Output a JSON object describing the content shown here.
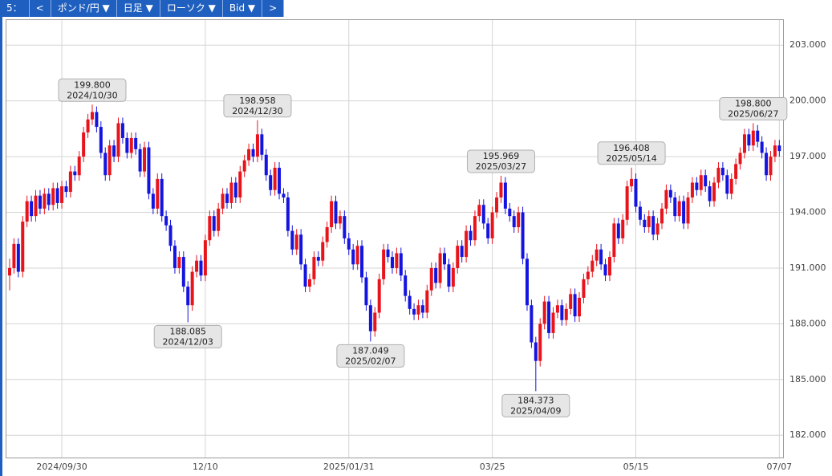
{
  "toolbar": [
    "5：",
    "<",
    "ポンド/円 ▼",
    "日足 ▼",
    "ローソク ▼",
    "Bid ▼",
    ">"
  ],
  "chart_data": {
    "type": "candlestick",
    "up_color": "#e8141c",
    "down_color": "#1414e0",
    "grid": true,
    "ylim": [
      180.8,
      204.35
    ],
    "yticks": [
      {
        "value": 182,
        "label": "182.000"
      },
      {
        "value": 185,
        "label": "185.000"
      },
      {
        "value": 188,
        "label": "188.000"
      },
      {
        "value": 191,
        "label": "191.000"
      },
      {
        "value": 194,
        "label": "194.000"
      },
      {
        "value": 197,
        "label": "197.000"
      },
      {
        "value": 200,
        "label": "200.000"
      },
      {
        "value": 203,
        "label": "203.000"
      }
    ],
    "xticks": [
      {
        "value": 12,
        "label": "2024/09/30"
      },
      {
        "value": 45,
        "label": "12/10"
      },
      {
        "value": 78,
        "label": "2025/01/31"
      },
      {
        "value": 111,
        "label": "03/25"
      },
      {
        "value": 144,
        "label": "05/15"
      },
      {
        "value": 177,
        "label": "07/07"
      }
    ],
    "annotations": [
      {
        "value": 199.8,
        "label": "199.800",
        "date": "2024/10/30"
      },
      {
        "value": 188.085,
        "label": "188.085",
        "date": "2024/12/03"
      },
      {
        "value": 198.958,
        "label": "198.958",
        "date": "2024/12/30"
      },
      {
        "value": 187.049,
        "label": "187.049",
        "date": "2025/02/07"
      },
      {
        "value": 195.969,
        "label": "195.969",
        "date": "2025/03/27"
      },
      {
        "value": 184.373,
        "label": "184.373",
        "date": "2025/04/09"
      },
      {
        "value": 196.408,
        "label": "196.408",
        "date": "2025/05/14"
      },
      {
        "value": 198.8,
        "label": "198.800",
        "date": "2025/06/27"
      }
    ],
    "candles": [
      [
        190.6,
        191.5,
        189.8,
        191.0
      ],
      [
        191.0,
        192.6,
        190.7,
        192.3
      ],
      [
        192.3,
        192.6,
        190.5,
        190.8
      ],
      [
        190.8,
        193.8,
        190.5,
        193.5
      ],
      [
        193.5,
        194.9,
        193.2,
        194.6
      ],
      [
        194.6,
        194.9,
        193.5,
        193.8
      ],
      [
        193.8,
        195.2,
        193.5,
        194.9
      ],
      [
        194.9,
        195.2,
        193.9,
        194.2
      ],
      [
        194.2,
        195.3,
        193.9,
        195.0
      ],
      [
        195.0,
        195.3,
        194.1,
        194.4
      ],
      [
        194.4,
        195.6,
        194.1,
        195.3
      ],
      [
        195.3,
        195.6,
        194.2,
        194.5
      ],
      [
        194.5,
        195.7,
        194.2,
        195.4
      ],
      [
        195.4,
        195.7,
        194.8,
        195.1
      ],
      [
        195.1,
        196.5,
        194.8,
        196.2
      ],
      [
        196.2,
        196.5,
        195.7,
        196.0
      ],
      [
        196.0,
        197.3,
        195.7,
        197.0
      ],
      [
        197.0,
        198.6,
        196.7,
        198.3
      ],
      [
        198.3,
        199.3,
        198.0,
        199.0
      ],
      [
        199.0,
        199.8,
        198.7,
        199.4
      ],
      [
        199.4,
        199.7,
        198.3,
        198.6
      ],
      [
        198.6,
        198.9,
        196.9,
        197.2
      ],
      [
        197.2,
        197.5,
        195.7,
        196.0
      ],
      [
        196.0,
        197.9,
        195.7,
        197.6
      ],
      [
        197.6,
        197.9,
        196.7,
        197.0
      ],
      [
        197.0,
        199.1,
        196.7,
        198.8
      ],
      [
        198.8,
        199.1,
        197.7,
        198.0
      ],
      [
        198.0,
        198.3,
        196.9,
        197.2
      ],
      [
        197.2,
        198.3,
        196.9,
        198.0
      ],
      [
        198.0,
        198.3,
        197.1,
        197.4
      ],
      [
        197.4,
        197.7,
        195.9,
        196.2
      ],
      [
        196.2,
        197.8,
        195.9,
        197.5
      ],
      [
        197.5,
        197.8,
        194.7,
        195.0
      ],
      [
        195.0,
        195.3,
        193.9,
        194.2
      ],
      [
        194.2,
        196.1,
        193.9,
        195.8
      ],
      [
        195.8,
        196.1,
        193.5,
        193.8
      ],
      [
        193.8,
        194.1,
        193.0,
        193.3
      ],
      [
        193.3,
        193.6,
        191.9,
        192.2
      ],
      [
        192.2,
        192.5,
        190.7,
        191.0
      ],
      [
        191.0,
        191.9,
        190.7,
        191.6
      ],
      [
        191.6,
        191.9,
        189.7,
        190.0
      ],
      [
        190.0,
        190.3,
        188.085,
        189.0
      ],
      [
        189.0,
        191.1,
        188.7,
        190.8
      ],
      [
        190.8,
        191.7,
        190.5,
        191.4
      ],
      [
        191.4,
        191.7,
        190.3,
        190.6
      ],
      [
        190.6,
        192.8,
        190.3,
        192.5
      ],
      [
        192.5,
        194.1,
        192.2,
        193.8
      ],
      [
        193.8,
        194.1,
        192.7,
        193.0
      ],
      [
        193.0,
        194.5,
        192.7,
        194.2
      ],
      [
        194.2,
        195.3,
        193.9,
        195.0
      ],
      [
        195.0,
        195.3,
        194.2,
        194.5
      ],
      [
        194.5,
        195.9,
        194.2,
        195.6
      ],
      [
        195.6,
        195.9,
        194.5,
        194.8
      ],
      [
        194.8,
        196.5,
        194.5,
        196.2
      ],
      [
        196.2,
        197.1,
        195.9,
        196.8
      ],
      [
        196.8,
        197.7,
        196.5,
        197.4
      ],
      [
        197.4,
        197.7,
        196.7,
        197.0
      ],
      [
        197.0,
        198.958,
        196.7,
        198.2
      ],
      [
        198.2,
        198.5,
        196.8,
        197.1
      ],
      [
        197.1,
        197.4,
        195.7,
        196.0
      ],
      [
        196.0,
        196.3,
        194.9,
        195.2
      ],
      [
        195.2,
        196.7,
        194.9,
        196.4
      ],
      [
        196.4,
        196.7,
        194.7,
        195.0
      ],
      [
        195.0,
        195.3,
        194.5,
        194.8
      ],
      [
        194.8,
        195.1,
        192.7,
        193.0
      ],
      [
        193.0,
        193.3,
        191.7,
        192.0
      ],
      [
        192.0,
        193.1,
        191.7,
        192.8
      ],
      [
        192.8,
        193.1,
        190.9,
        191.2
      ],
      [
        191.2,
        191.5,
        189.7,
        190.0
      ],
      [
        190.0,
        190.7,
        189.7,
        190.4
      ],
      [
        190.4,
        191.9,
        190.1,
        191.6
      ],
      [
        191.6,
        191.9,
        191.1,
        191.4
      ],
      [
        191.4,
        192.7,
        191.1,
        192.4
      ],
      [
        192.4,
        193.5,
        192.1,
        193.2
      ],
      [
        193.2,
        194.9,
        192.9,
        194.6
      ],
      [
        194.6,
        194.9,
        193.1,
        193.4
      ],
      [
        193.4,
        194.1,
        193.1,
        193.8
      ],
      [
        193.8,
        194.1,
        192.3,
        192.6
      ],
      [
        192.6,
        192.9,
        191.7,
        192.0
      ],
      [
        192.0,
        192.3,
        190.9,
        191.2
      ],
      [
        191.2,
        192.5,
        190.9,
        192.2
      ],
      [
        192.2,
        192.5,
        190.2,
        190.5
      ],
      [
        190.5,
        190.8,
        188.7,
        189.0
      ],
      [
        189.0,
        189.3,
        187.049,
        187.6
      ],
      [
        187.6,
        188.9,
        187.3,
        188.6
      ],
      [
        188.6,
        190.7,
        188.3,
        190.4
      ],
      [
        190.4,
        192.3,
        190.1,
        192.0
      ],
      [
        192.0,
        192.3,
        191.3,
        191.6
      ],
      [
        191.6,
        191.9,
        190.7,
        191.0
      ],
      [
        191.0,
        192.1,
        190.7,
        191.8
      ],
      [
        191.8,
        192.1,
        190.3,
        190.6
      ],
      [
        190.6,
        190.9,
        189.2,
        189.5
      ],
      [
        189.5,
        189.8,
        188.5,
        188.8
      ],
      [
        188.8,
        189.1,
        188.2,
        188.5
      ],
      [
        188.5,
        189.3,
        188.2,
        189.0
      ],
      [
        189.0,
        189.3,
        188.3,
        188.6
      ],
      [
        188.6,
        190.1,
        188.3,
        189.8
      ],
      [
        189.8,
        191.3,
        189.5,
        191.0
      ],
      [
        191.0,
        191.3,
        189.9,
        190.2
      ],
      [
        190.2,
        192.1,
        189.9,
        191.8
      ],
      [
        191.8,
        192.1,
        190.9,
        191.2
      ],
      [
        191.2,
        191.5,
        189.7,
        190.0
      ],
      [
        190.0,
        191.3,
        189.7,
        191.0
      ],
      [
        191.0,
        192.5,
        190.7,
        192.2
      ],
      [
        192.2,
        192.5,
        191.3,
        191.6
      ],
      [
        191.6,
        193.3,
        191.3,
        193.0
      ],
      [
        193.0,
        193.3,
        192.2,
        192.5
      ],
      [
        192.5,
        194.1,
        192.2,
        193.8
      ],
      [
        193.8,
        194.7,
        193.5,
        194.4
      ],
      [
        194.4,
        194.7,
        193.1,
        193.4
      ],
      [
        193.4,
        193.7,
        192.3,
        192.6
      ],
      [
        192.6,
        194.3,
        192.3,
        194.0
      ],
      [
        194.0,
        195.1,
        193.7,
        194.8
      ],
      [
        194.8,
        195.969,
        194.5,
        195.6
      ],
      [
        195.6,
        195.9,
        193.9,
        194.2
      ],
      [
        194.2,
        194.5,
        193.5,
        193.8
      ],
      [
        193.8,
        194.1,
        192.9,
        193.2
      ],
      [
        193.2,
        194.3,
        192.9,
        194.0
      ],
      [
        194.0,
        194.3,
        191.2,
        191.5
      ],
      [
        191.5,
        191.8,
        188.7,
        189.0
      ],
      [
        189.0,
        189.3,
        186.7,
        187.0
      ],
      [
        187.0,
        187.3,
        184.373,
        186.0
      ],
      [
        186.0,
        188.3,
        185.7,
        188.0
      ],
      [
        188.0,
        189.5,
        187.7,
        189.2
      ],
      [
        189.2,
        189.5,
        187.2,
        187.5
      ],
      [
        187.5,
        188.9,
        187.2,
        188.6
      ],
      [
        188.6,
        189.3,
        188.3,
        189.0
      ],
      [
        189.0,
        189.3,
        187.9,
        188.2
      ],
      [
        188.2,
        189.1,
        187.9,
        188.8
      ],
      [
        188.8,
        189.9,
        188.5,
        189.6
      ],
      [
        189.6,
        189.9,
        188.1,
        188.4
      ],
      [
        188.4,
        189.7,
        188.1,
        189.4
      ],
      [
        189.4,
        190.7,
        189.1,
        190.4
      ],
      [
        190.4,
        191.1,
        190.1,
        190.8
      ],
      [
        190.8,
        191.7,
        190.5,
        191.4
      ],
      [
        191.4,
        192.3,
        191.1,
        192.0
      ],
      [
        192.0,
        192.3,
        190.9,
        191.2
      ],
      [
        191.2,
        191.5,
        190.3,
        190.6
      ],
      [
        190.6,
        191.9,
        190.3,
        191.6
      ],
      [
        191.6,
        193.7,
        191.3,
        193.4
      ],
      [
        193.4,
        193.7,
        192.3,
        192.6
      ],
      [
        192.6,
        193.9,
        192.3,
        193.6
      ],
      [
        193.6,
        195.7,
        193.3,
        195.4
      ],
      [
        195.4,
        196.408,
        195.1,
        195.8
      ],
      [
        195.8,
        196.1,
        194.0,
        194.3
      ],
      [
        194.3,
        194.6,
        193.3,
        193.6
      ],
      [
        193.6,
        193.9,
        192.9,
        193.2
      ],
      [
        193.2,
        194.1,
        192.9,
        193.8
      ],
      [
        193.8,
        194.1,
        192.5,
        192.8
      ],
      [
        192.8,
        193.7,
        192.5,
        193.4
      ],
      [
        193.4,
        194.5,
        193.1,
        194.2
      ],
      [
        194.2,
        195.5,
        193.9,
        195.2
      ],
      [
        195.2,
        195.5,
        194.5,
        194.8
      ],
      [
        194.8,
        195.1,
        193.5,
        193.8
      ],
      [
        193.8,
        194.9,
        193.5,
        194.6
      ],
      [
        194.6,
        194.9,
        193.1,
        193.4
      ],
      [
        193.4,
        195.1,
        193.1,
        194.8
      ],
      [
        194.8,
        195.9,
        194.5,
        195.6
      ],
      [
        195.6,
        195.9,
        194.9,
        195.2
      ],
      [
        195.2,
        196.3,
        194.9,
        196.0
      ],
      [
        196.0,
        196.3,
        195.1,
        195.4
      ],
      [
        195.4,
        195.7,
        194.3,
        194.6
      ],
      [
        194.6,
        195.9,
        194.3,
        195.6
      ],
      [
        195.6,
        196.7,
        195.3,
        196.4
      ],
      [
        196.4,
        196.7,
        195.7,
        196.0
      ],
      [
        196.0,
        196.3,
        194.7,
        195.0
      ],
      [
        195.0,
        196.1,
        194.7,
        195.8
      ],
      [
        195.8,
        196.9,
        195.5,
        196.6
      ],
      [
        196.6,
        197.5,
        196.3,
        197.2
      ],
      [
        197.2,
        198.5,
        196.9,
        198.2
      ],
      [
        198.2,
        198.5,
        197.3,
        197.6
      ],
      [
        197.6,
        198.8,
        197.3,
        198.4
      ],
      [
        198.4,
        198.7,
        197.5,
        197.8
      ],
      [
        197.8,
        198.1,
        196.9,
        197.2
      ],
      [
        197.2,
        197.5,
        195.7,
        196.0
      ],
      [
        196.0,
        197.3,
        195.7,
        197.0
      ],
      [
        197.0,
        197.9,
        196.7,
        197.6
      ],
      [
        197.6,
        197.9,
        197.0,
        197.3
      ]
    ]
  }
}
